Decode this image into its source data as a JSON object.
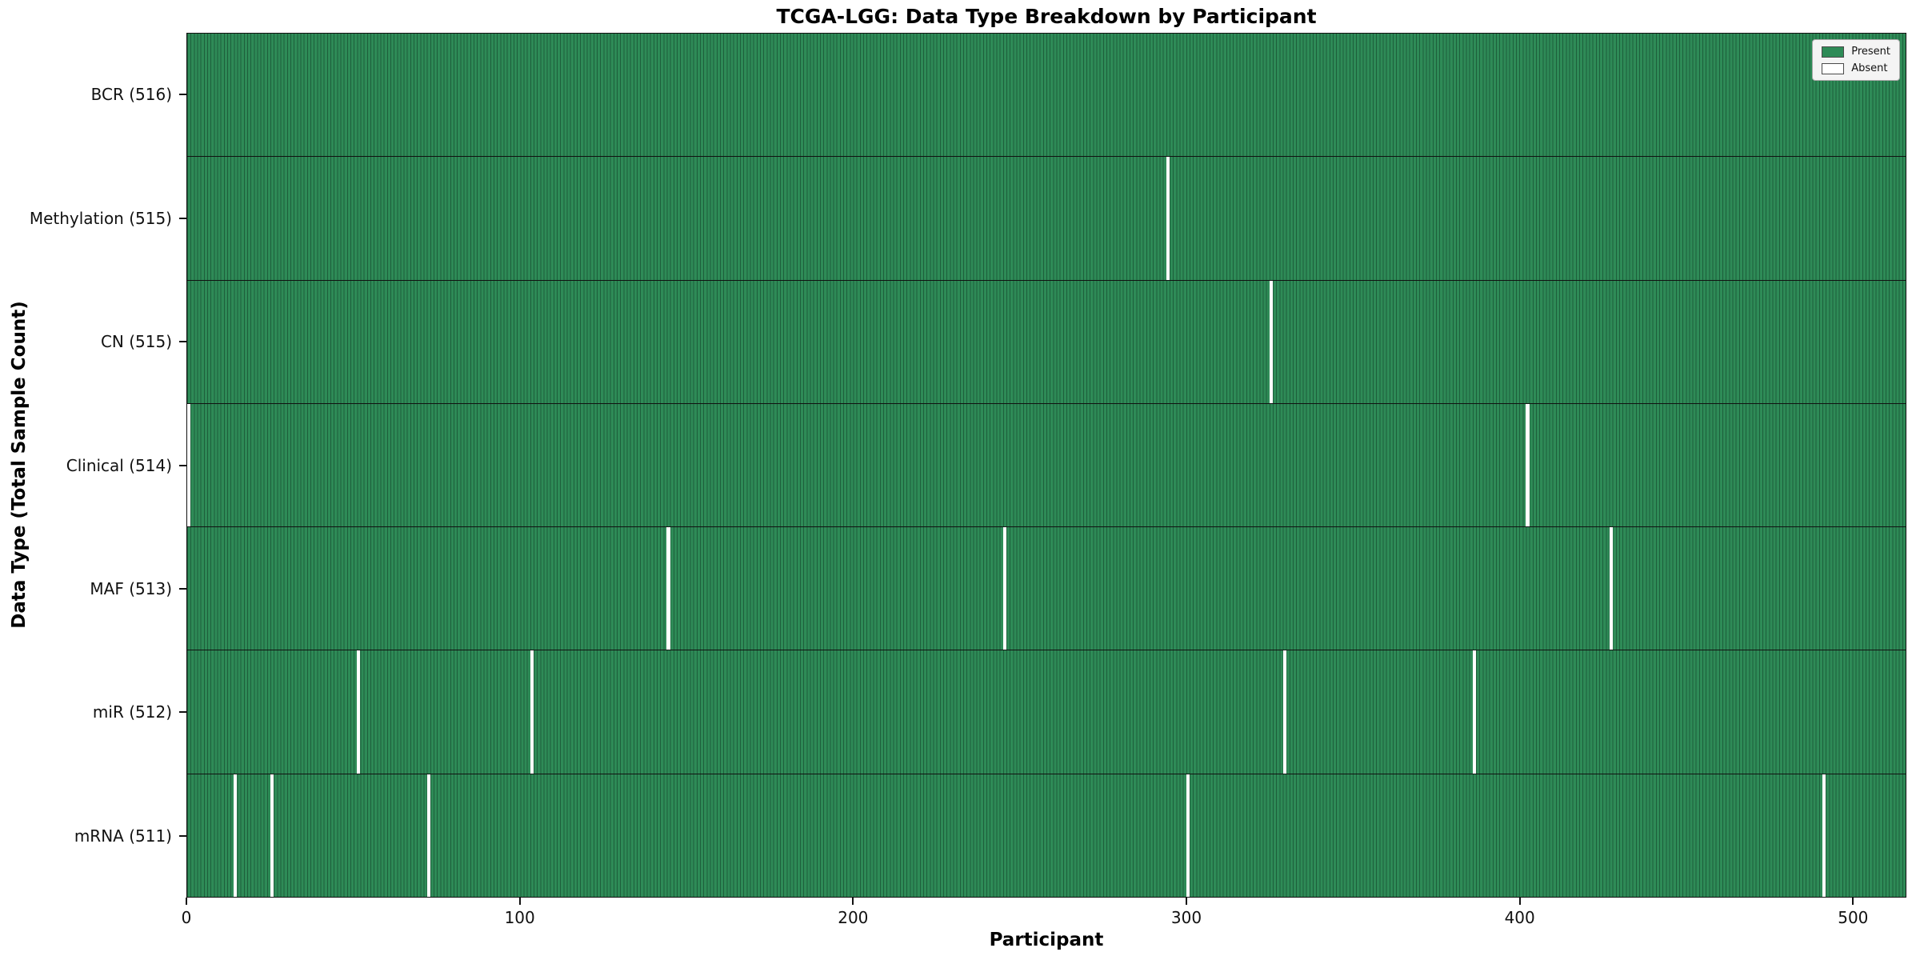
{
  "chart_data": {
    "type": "heatmap",
    "title": "TCGA-LGG: Data Type Breakdown by Participant",
    "xlabel": "Participant",
    "ylabel": "Data Type (Total Sample Count)",
    "n_participants": 516,
    "x_ticks": [
      0,
      100,
      200,
      300,
      400,
      500
    ],
    "present_color": "#2e8b57",
    "absent_color": "#ffffff",
    "cell_edge_color": "#1d5e3b",
    "legend": {
      "position": "upper right",
      "items": [
        {
          "label": "Present",
          "color": "#2e8b57"
        },
        {
          "label": "Absent",
          "color": "#ffffff"
        }
      ]
    },
    "rows": [
      {
        "label": "BCR (516)",
        "data_type": "BCR",
        "total": 516,
        "absent_participants": []
      },
      {
        "label": "Methylation (515)",
        "data_type": "Methylation",
        "total": 515,
        "absent_participants": [
          294
        ]
      },
      {
        "label": "CN (515)",
        "data_type": "CN",
        "total": 515,
        "absent_participants": [
          325
        ]
      },
      {
        "label": "Clinical (514)",
        "data_type": "Clinical",
        "total": 514,
        "absent_participants": [
          0,
          402
        ]
      },
      {
        "label": "MAF (513)",
        "data_type": "MAF",
        "total": 513,
        "absent_participants": [
          144,
          245,
          427
        ]
      },
      {
        "label": "miR (512)",
        "data_type": "miR",
        "total": 512,
        "absent_participants": [
          51,
          103,
          329,
          386
        ]
      },
      {
        "label": "mRNA (511)",
        "data_type": "mRNA",
        "total": 511,
        "absent_participants": [
          14,
          25,
          72,
          300,
          491
        ]
      }
    ]
  }
}
